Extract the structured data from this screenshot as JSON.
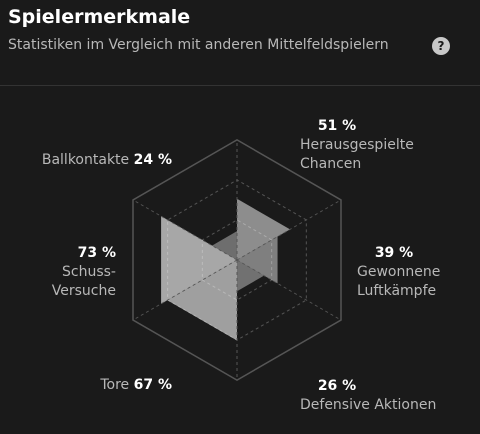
{
  "header": {
    "title": "Spielermerkmale",
    "subtitle": "Statistiken im Vergleich mit anderen Mittelfeldspielern",
    "help": "?"
  },
  "chart_data": {
    "type": "radar",
    "categories": [
      "Herausgespielte\nChancen",
      "Gewonnene\nLuftkämpfe",
      "Defensive Aktionen",
      "Tore",
      "Schuss-\nVersuche",
      "Ballkontakte"
    ],
    "values": [
      51,
      39,
      26,
      67,
      73,
      24
    ],
    "value_labels": [
      "51 %",
      "39 %",
      "26 %",
      "67 %",
      "73 %",
      "24 %"
    ],
    "rlim": [
      0,
      100
    ]
  }
}
